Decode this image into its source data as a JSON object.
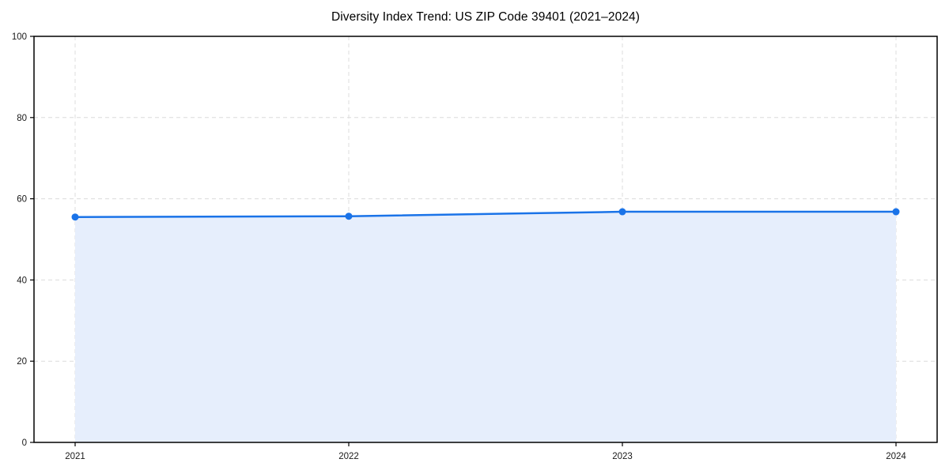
{
  "title": "Diversity Index Trend: US ZIP Code 39401 (2021–2024)",
  "colors": {
    "line": "#1a73e8",
    "marker": "#1a73e8",
    "area_fill": "#e6eefc",
    "grid": "#dcdcdc",
    "spine": "#000000",
    "tick_text": "#1a1a1a",
    "background": "#ffffff"
  },
  "chart_data": {
    "type": "area",
    "title": "Diversity Index Trend: US ZIP Code 39401 (2021–2024)",
    "x": [
      2021,
      2022,
      2023,
      2024
    ],
    "xticklabels": [
      "2021",
      "2022",
      "2023",
      "2024"
    ],
    "series": [
      {
        "name": "Diversity Index",
        "values": [
          55.5,
          55.7,
          56.8,
          56.8
        ]
      }
    ],
    "xlabel": "",
    "ylabel": "",
    "ylim": [
      0,
      100
    ],
    "yticks": [
      0,
      20,
      40,
      60,
      80,
      100
    ],
    "yticklabels": [
      "0",
      "20",
      "40",
      "60",
      "80",
      "100"
    ],
    "grid": true,
    "grid_style": "dashed",
    "legend": false,
    "marker": "circle",
    "line_width": 2.5,
    "marker_radius": 4.5
  }
}
